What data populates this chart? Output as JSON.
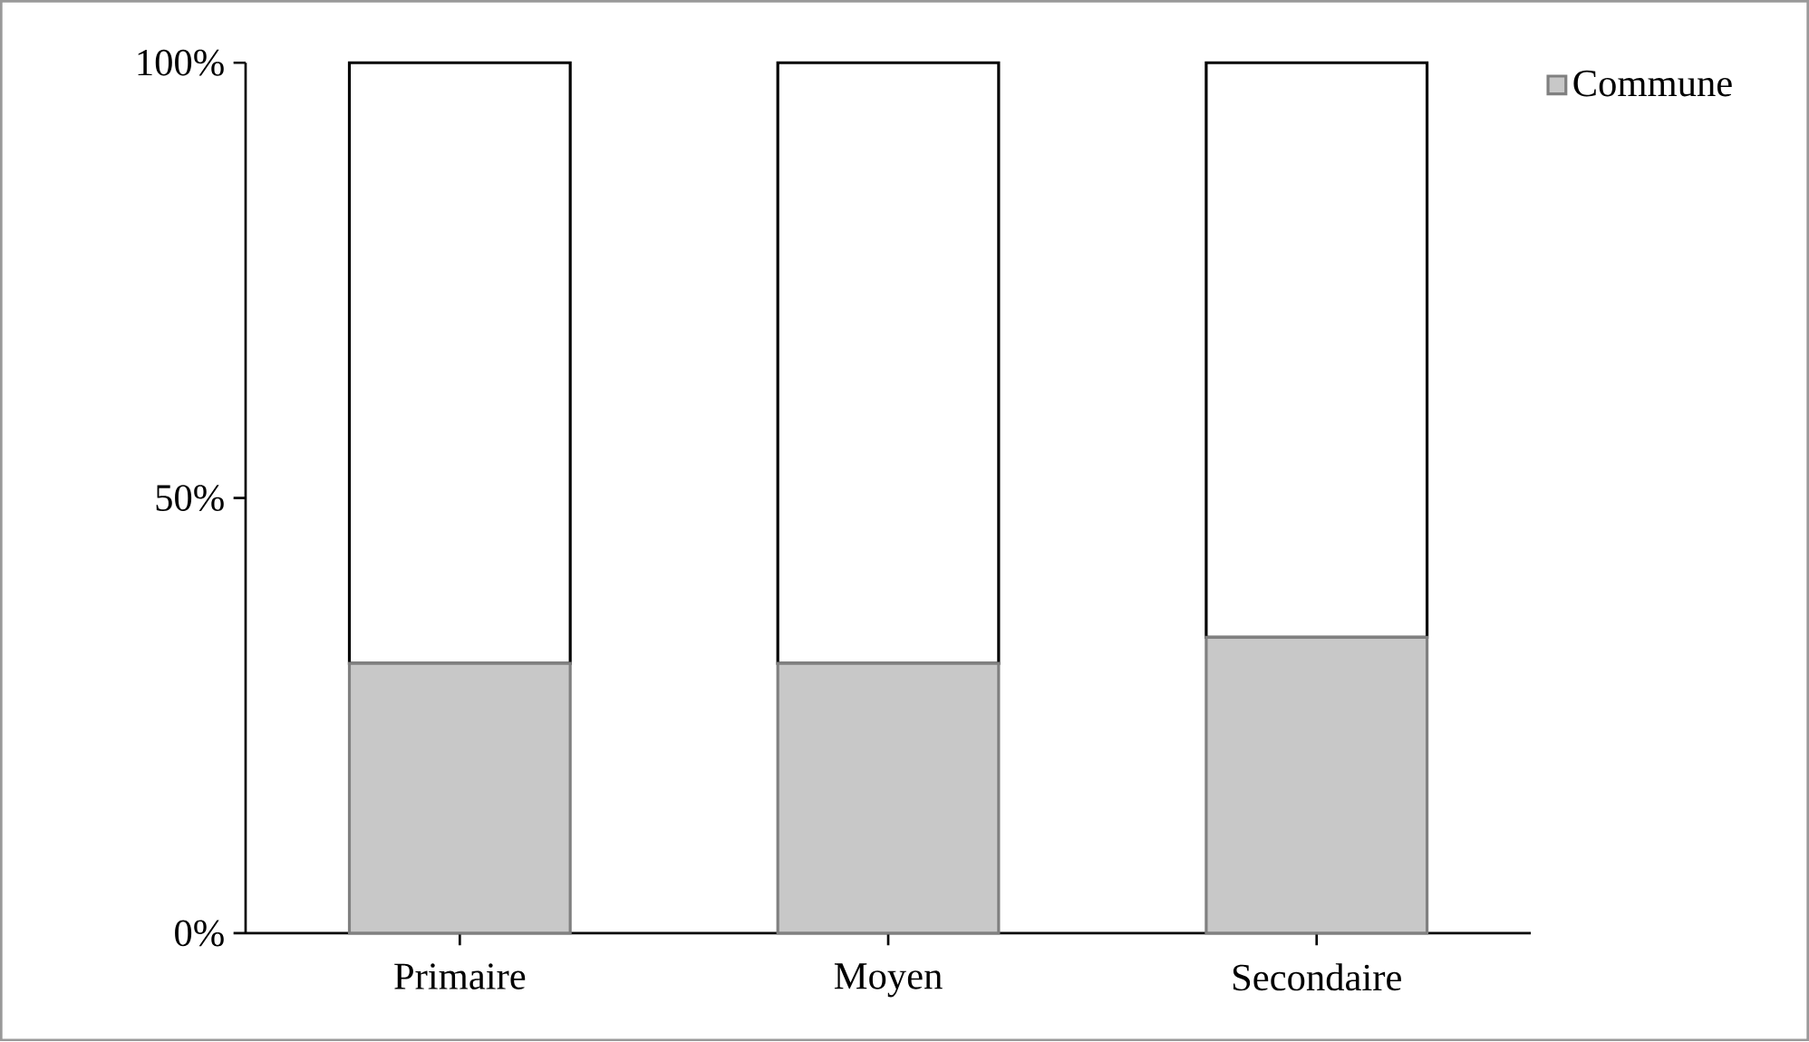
{
  "chart_data": {
    "type": "bar",
    "stacked": true,
    "categories": [
      "Primaire",
      "Moyen",
      "Secondaire"
    ],
    "series": [
      {
        "name": "Commune",
        "color": "#c8c8c8",
        "values": [
          31,
          31,
          34
        ]
      },
      {
        "color": "#ffffff",
        "values": [
          69,
          69,
          66
        ]
      }
    ],
    "ylim": [
      0,
      100
    ],
    "yticks": [
      {
        "value": 0,
        "label": "0%"
      },
      {
        "value": 50,
        "label": "50%"
      },
      {
        "value": 100,
        "label": "100%"
      }
    ],
    "grid": false,
    "legend": "top right"
  }
}
